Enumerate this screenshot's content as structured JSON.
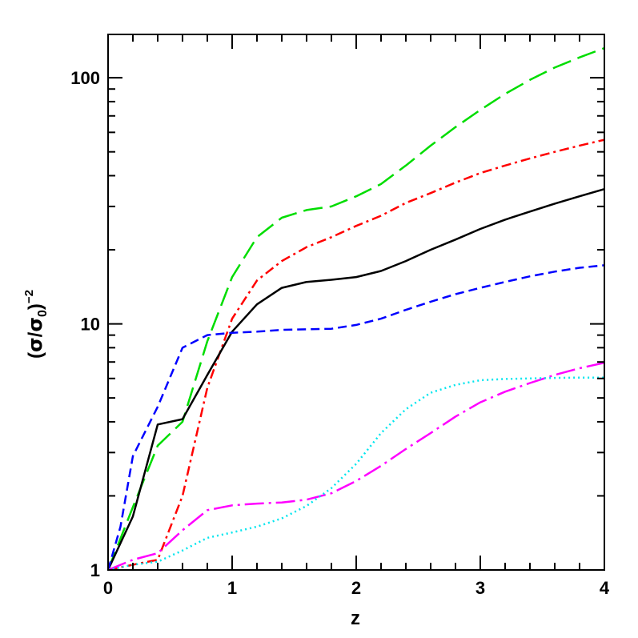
{
  "chart_data": {
    "type": "line",
    "title": "",
    "xlabel": "z",
    "ylabel": "(σ/σ0)^-2",
    "ylabel_parts": {
      "open": "(",
      "sigma": "σ",
      "slash": "/",
      "sigma0": "σ",
      "sub0": "0",
      "close": ")",
      "exponent": "−2"
    },
    "xlim": [
      0,
      4
    ],
    "ylim": [
      1,
      150
    ],
    "yscale": "log",
    "grid": false,
    "x_ticks": [
      {
        "value": 0,
        "label": "0"
      },
      {
        "value": 1,
        "label": "1"
      },
      {
        "value": 2,
        "label": "2"
      },
      {
        "value": 3,
        "label": "3"
      },
      {
        "value": 4,
        "label": "4"
      }
    ],
    "y_ticks": [
      {
        "value": 1,
        "label": "1"
      },
      {
        "value": 10,
        "label": "10"
      },
      {
        "value": 100,
        "label": "100"
      }
    ],
    "series": [
      {
        "style": "long-dash",
        "color": "#00dd00",
        "x": [
          0,
          0.2,
          0.4,
          0.6,
          0.8,
          1.0,
          1.2,
          1.4,
          1.6,
          1.8,
          2.0,
          2.2,
          2.4,
          2.6,
          2.8,
          3.0,
          3.2,
          3.4,
          3.6,
          3.8,
          4.0
        ],
        "y": [
          1.0,
          1.8,
          3.2,
          4.0,
          8.5,
          15.5,
          22.5,
          27.0,
          29.0,
          30.0,
          33.0,
          37.0,
          44.0,
          53.0,
          63.0,
          74.0,
          86.0,
          98.0,
          110.0,
          121.0,
          132.0
        ]
      },
      {
        "style": "dash-dot",
        "color": "#ff0000",
        "x": [
          0,
          0.2,
          0.4,
          0.6,
          0.8,
          1.0,
          1.2,
          1.4,
          1.6,
          1.8,
          2.0,
          2.2,
          2.4,
          2.6,
          2.8,
          3.0,
          3.2,
          3.4,
          3.6,
          3.8,
          4.0
        ],
        "y": [
          1.0,
          1.05,
          1.1,
          2.0,
          5.5,
          10.5,
          15.0,
          18.0,
          20.5,
          22.5,
          25.0,
          27.5,
          31.0,
          34.0,
          37.5,
          41.0,
          44.0,
          47.0,
          50.0,
          53.0,
          56.0
        ]
      },
      {
        "style": "solid",
        "color": "#000000",
        "x": [
          0,
          0.2,
          0.4,
          0.6,
          0.8,
          1.0,
          1.2,
          1.4,
          1.6,
          1.8,
          2.0,
          2.2,
          2.4,
          2.6,
          2.8,
          3.0,
          3.2,
          3.4,
          3.6,
          3.8,
          4.0
        ],
        "y": [
          1.0,
          1.65,
          3.9,
          4.1,
          6.2,
          9.3,
          12.0,
          14.0,
          14.8,
          15.1,
          15.5,
          16.4,
          18.0,
          20.0,
          22.0,
          24.3,
          26.5,
          28.6,
          30.8,
          33.0,
          35.3
        ]
      },
      {
        "style": "short-dash",
        "color": "#0000ff",
        "x": [
          0,
          0.1,
          0.2,
          0.4,
          0.6,
          0.8,
          1.0,
          1.2,
          1.4,
          1.6,
          1.8,
          2.0,
          2.2,
          2.4,
          2.6,
          2.8,
          3.0,
          3.2,
          3.4,
          3.6,
          3.8,
          4.0
        ],
        "y": [
          1.0,
          1.5,
          2.9,
          4.6,
          8.0,
          9.0,
          9.2,
          9.3,
          9.45,
          9.5,
          9.55,
          9.9,
          10.5,
          11.4,
          12.3,
          13.2,
          14.0,
          14.8,
          15.6,
          16.3,
          16.9,
          17.3
        ]
      },
      {
        "style": "long-dash-dot",
        "color": "#ff00ff",
        "x": [
          0,
          0.2,
          0.4,
          0.6,
          0.8,
          1.0,
          1.2,
          1.4,
          1.6,
          1.8,
          2.0,
          2.2,
          2.4,
          2.6,
          2.8,
          3.0,
          3.2,
          3.4,
          3.6,
          3.8,
          4.0
        ],
        "y": [
          1.0,
          1.1,
          1.17,
          1.45,
          1.75,
          1.83,
          1.86,
          1.88,
          1.93,
          2.05,
          2.3,
          2.65,
          3.1,
          3.6,
          4.2,
          4.8,
          5.3,
          5.75,
          6.2,
          6.6,
          6.95
        ]
      },
      {
        "style": "dotted",
        "color": "#00e5ee",
        "x": [
          0,
          0.2,
          0.4,
          0.6,
          0.8,
          1.0,
          1.2,
          1.4,
          1.6,
          1.8,
          2.0,
          2.2,
          2.4,
          2.6,
          2.8,
          3.0,
          3.2,
          3.4,
          3.6,
          3.8,
          4.0
        ],
        "y": [
          1.0,
          1.05,
          1.08,
          1.2,
          1.35,
          1.42,
          1.5,
          1.62,
          1.82,
          2.15,
          2.7,
          3.6,
          4.5,
          5.25,
          5.65,
          5.9,
          5.97,
          6.0,
          6.03,
          6.05,
          6.05
        ]
      }
    ]
  }
}
